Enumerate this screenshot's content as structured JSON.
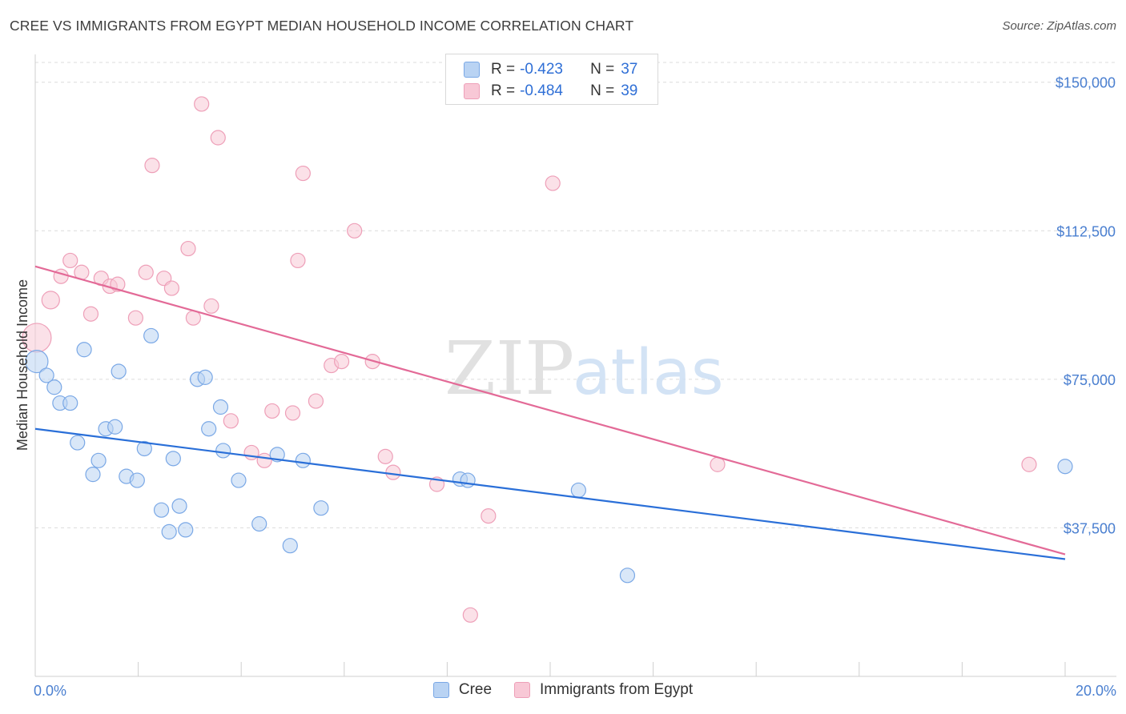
{
  "header": {
    "title": "CREE VS IMMIGRANTS FROM EGYPT MEDIAN HOUSEHOLD INCOME CORRELATION CHART",
    "source": "Source: ZipAtlas.com"
  },
  "legend": {
    "rows": [
      {
        "r_label": "R =",
        "r_value": "-0.423",
        "n_label": "N =",
        "n_value": "37"
      },
      {
        "r_label": "R =",
        "r_value": "-0.484",
        "n_label": "N =",
        "n_value": "39"
      }
    ],
    "bottom": [
      {
        "label": "Cree"
      },
      {
        "label": "Immigrants from Egypt"
      }
    ]
  },
  "watermark": {
    "zip": "ZIP",
    "atlas": "atlas"
  },
  "colors": {
    "cree_fill": "#b9d3f3",
    "cree_stroke": "#7aa8e6",
    "cree_line": "#2a6fd8",
    "egypt_fill": "#f8c8d6",
    "egypt_stroke": "#ee9fb8",
    "egypt_line": "#e36a97",
    "tick_text": "#4a7fd0",
    "grid": "#dcdcdc"
  },
  "chart_data": {
    "type": "scatter",
    "title": "CREE VS IMMIGRANTS FROM EGYPT MEDIAN HOUSEHOLD INCOME CORRELATION CHART",
    "xlabel": "",
    "ylabel": "Median Household Income",
    "xlim": [
      0,
      20
    ],
    "ylim": [
      0,
      155000
    ],
    "x_tick_labels": [
      "0.0%",
      "20.0%"
    ],
    "y_ticks": [
      37500,
      75000,
      112500,
      150000
    ],
    "y_tick_labels": [
      "$37,500",
      "$75,000",
      "$112,500",
      "$150,000"
    ],
    "grid": true,
    "legend_position": "top-center",
    "series": [
      {
        "name": "Cree",
        "r": -0.423,
        "n": 37,
        "trend": [
          [
            0,
            62500
          ],
          [
            20,
            29600
          ]
        ],
        "points": [
          {
            "x": 0.03,
            "y": 79500,
            "s": 14
          },
          {
            "x": 0.22,
            "y": 76000,
            "s": 9
          },
          {
            "x": 0.37,
            "y": 73000,
            "s": 9
          },
          {
            "x": 0.48,
            "y": 69000,
            "s": 9
          },
          {
            "x": 0.68,
            "y": 69000,
            "s": 9
          },
          {
            "x": 0.82,
            "y": 59000,
            "s": 9
          },
          {
            "x": 0.95,
            "y": 82500,
            "s": 9
          },
          {
            "x": 1.12,
            "y": 51000,
            "s": 9
          },
          {
            "x": 1.23,
            "y": 54500,
            "s": 9
          },
          {
            "x": 1.37,
            "y": 62500,
            "s": 9
          },
          {
            "x": 1.55,
            "y": 63000,
            "s": 9
          },
          {
            "x": 1.62,
            "y": 77000,
            "s": 9
          },
          {
            "x": 1.77,
            "y": 50500,
            "s": 9
          },
          {
            "x": 1.98,
            "y": 49500,
            "s": 9
          },
          {
            "x": 2.12,
            "y": 57500,
            "s": 9
          },
          {
            "x": 2.25,
            "y": 86000,
            "s": 9
          },
          {
            "x": 2.45,
            "y": 42000,
            "s": 9
          },
          {
            "x": 2.6,
            "y": 36500,
            "s": 9
          },
          {
            "x": 2.68,
            "y": 55000,
            "s": 9
          },
          {
            "x": 2.8,
            "y": 43000,
            "s": 9
          },
          {
            "x": 2.92,
            "y": 37000,
            "s": 9
          },
          {
            "x": 3.15,
            "y": 75000,
            "s": 9
          },
          {
            "x": 3.3,
            "y": 75500,
            "s": 9
          },
          {
            "x": 3.37,
            "y": 62500,
            "s": 9
          },
          {
            "x": 3.6,
            "y": 68000,
            "s": 9
          },
          {
            "x": 3.65,
            "y": 57000,
            "s": 9
          },
          {
            "x": 3.95,
            "y": 49500,
            "s": 9
          },
          {
            "x": 4.35,
            "y": 38500,
            "s": 9
          },
          {
            "x": 4.7,
            "y": 56000,
            "s": 9
          },
          {
            "x": 4.95,
            "y": 33000,
            "s": 9
          },
          {
            "x": 5.2,
            "y": 54500,
            "s": 9
          },
          {
            "x": 5.55,
            "y": 42500,
            "s": 9
          },
          {
            "x": 8.25,
            "y": 49800,
            "s": 9
          },
          {
            "x": 8.4,
            "y": 49500,
            "s": 9
          },
          {
            "x": 10.55,
            "y": 47000,
            "s": 9
          },
          {
            "x": 11.5,
            "y": 25500,
            "s": 9
          },
          {
            "x": 20.0,
            "y": 53000,
            "s": 9
          }
        ]
      },
      {
        "name": "Immigrants from Egypt",
        "r": -0.484,
        "n": 39,
        "trend": [
          [
            0,
            103500
          ],
          [
            20,
            30800
          ]
        ],
        "points": [
          {
            "x": 0.03,
            "y": 85500,
            "s": 18
          },
          {
            "x": 0.3,
            "y": 95000,
            "s": 11
          },
          {
            "x": 0.5,
            "y": 101000,
            "s": 9
          },
          {
            "x": 0.68,
            "y": 105000,
            "s": 9
          },
          {
            "x": 0.9,
            "y": 102000,
            "s": 9
          },
          {
            "x": 1.08,
            "y": 91500,
            "s": 9
          },
          {
            "x": 1.28,
            "y": 100500,
            "s": 9
          },
          {
            "x": 1.45,
            "y": 98500,
            "s": 9
          },
          {
            "x": 1.6,
            "y": 99000,
            "s": 9
          },
          {
            "x": 1.95,
            "y": 90500,
            "s": 9
          },
          {
            "x": 2.15,
            "y": 102000,
            "s": 9
          },
          {
            "x": 2.27,
            "y": 129000,
            "s": 9
          },
          {
            "x": 2.5,
            "y": 100500,
            "s": 9
          },
          {
            "x": 2.65,
            "y": 98000,
            "s": 9
          },
          {
            "x": 2.97,
            "y": 108000,
            "s": 9
          },
          {
            "x": 3.07,
            "y": 90500,
            "s": 9
          },
          {
            "x": 3.23,
            "y": 144500,
            "s": 9
          },
          {
            "x": 3.42,
            "y": 93500,
            "s": 9
          },
          {
            "x": 3.55,
            "y": 136000,
            "s": 9
          },
          {
            "x": 3.8,
            "y": 64500,
            "s": 9
          },
          {
            "x": 4.2,
            "y": 56500,
            "s": 9
          },
          {
            "x": 4.45,
            "y": 54500,
            "s": 9
          },
          {
            "x": 4.6,
            "y": 67000,
            "s": 9
          },
          {
            "x": 5.0,
            "y": 66500,
            "s": 9
          },
          {
            "x": 5.1,
            "y": 105000,
            "s": 9
          },
          {
            "x": 5.2,
            "y": 127000,
            "s": 9
          },
          {
            "x": 5.45,
            "y": 69500,
            "s": 9
          },
          {
            "x": 5.75,
            "y": 78500,
            "s": 9
          },
          {
            "x": 5.95,
            "y": 79500,
            "s": 9
          },
          {
            "x": 6.2,
            "y": 112500,
            "s": 9
          },
          {
            "x": 6.55,
            "y": 79500,
            "s": 9
          },
          {
            "x": 6.8,
            "y": 55500,
            "s": 9
          },
          {
            "x": 6.95,
            "y": 51500,
            "s": 9
          },
          {
            "x": 7.8,
            "y": 48500,
            "s": 9
          },
          {
            "x": 8.45,
            "y": 15500,
            "s": 9
          },
          {
            "x": 8.8,
            "y": 40500,
            "s": 9
          },
          {
            "x": 10.05,
            "y": 124500,
            "s": 9
          },
          {
            "x": 13.25,
            "y": 53500,
            "s": 9
          },
          {
            "x": 19.3,
            "y": 53500,
            "s": 9
          }
        ]
      }
    ]
  }
}
